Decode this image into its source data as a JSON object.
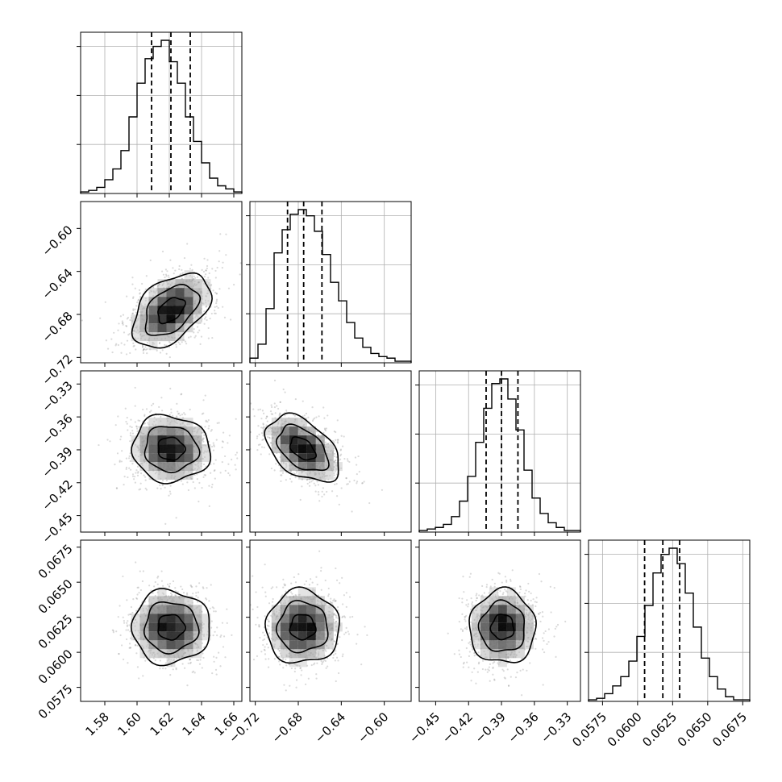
{
  "chart_data": {
    "type": "corner",
    "title": "",
    "parameters": [
      {
        "range": [
          1.565,
          1.665
        ],
        "ticks": [
          1.58,
          1.6,
          1.62,
          1.64,
          1.66
        ],
        "tick_labels": [
          "1.58",
          "1.60",
          "1.62",
          "1.64",
          "1.66"
        ],
        "quantiles": [
          1.609,
          1.621,
          1.633
        ],
        "hist_counts": [
          1,
          2,
          4,
          9,
          16,
          28,
          50,
          72,
          88,
          96,
          100,
          86,
          72,
          50,
          34,
          20,
          10,
          5,
          3,
          1
        ],
        "center": 1.621,
        "sigma": 0.012
      },
      {
        "range": [
          -0.725,
          -0.575
        ],
        "ticks": [
          -0.72,
          -0.68,
          -0.64,
          -0.6
        ],
        "tick_labels": [
          "−0.72",
          "−0.68",
          "−0.64",
          "−0.60"
        ],
        "quantiles": [
          -0.69,
          -0.675,
          -0.658
        ],
        "hist_counts": [
          3,
          12,
          35,
          71,
          86,
          96,
          99,
          95,
          85,
          70,
          52,
          40,
          26,
          16,
          10,
          6,
          4,
          3,
          1,
          1
        ],
        "center": -0.676,
        "sigma": 0.017
      },
      {
        "range": [
          -0.465,
          -0.318
        ],
        "ticks": [
          -0.45,
          -0.42,
          -0.39,
          -0.36,
          -0.33
        ],
        "tick_labels": [
          "−0.45",
          "−0.42",
          "−0.39",
          "−0.36",
          "−0.33"
        ],
        "quantiles": [
          -0.404,
          -0.39,
          -0.375
        ],
        "hist_counts": [
          1,
          2,
          3,
          5,
          10,
          20,
          36,
          58,
          80,
          96,
          99,
          86,
          66,
          40,
          22,
          12,
          6,
          3,
          1,
          1
        ],
        "center": -0.389,
        "sigma": 0.015
      },
      {
        "range": [
          0.0565,
          0.068
        ],
        "ticks": [
          0.0575,
          0.06,
          0.0625,
          0.065,
          0.0675
        ],
        "tick_labels": [
          "0.0575",
          "0.0600",
          "0.0625",
          "0.0650",
          "0.0675"
        ],
        "quantiles": [
          0.0605,
          0.0618,
          0.063
        ],
        "hist_counts": [
          1,
          2,
          5,
          10,
          16,
          26,
          42,
          62,
          83,
          95,
          99,
          89,
          70,
          48,
          28,
          16,
          8,
          3,
          1,
          1
        ],
        "center": 0.0618,
        "sigma": 0.0013
      }
    ],
    "correlations": {
      "1-0": 0.45,
      "2-0": -0.05,
      "2-1": -0.45,
      "3-0": 0.0,
      "3-1": 0.0,
      "3-2": 0.0
    },
    "grid": true,
    "xlabel": "",
    "ylabel": ""
  }
}
